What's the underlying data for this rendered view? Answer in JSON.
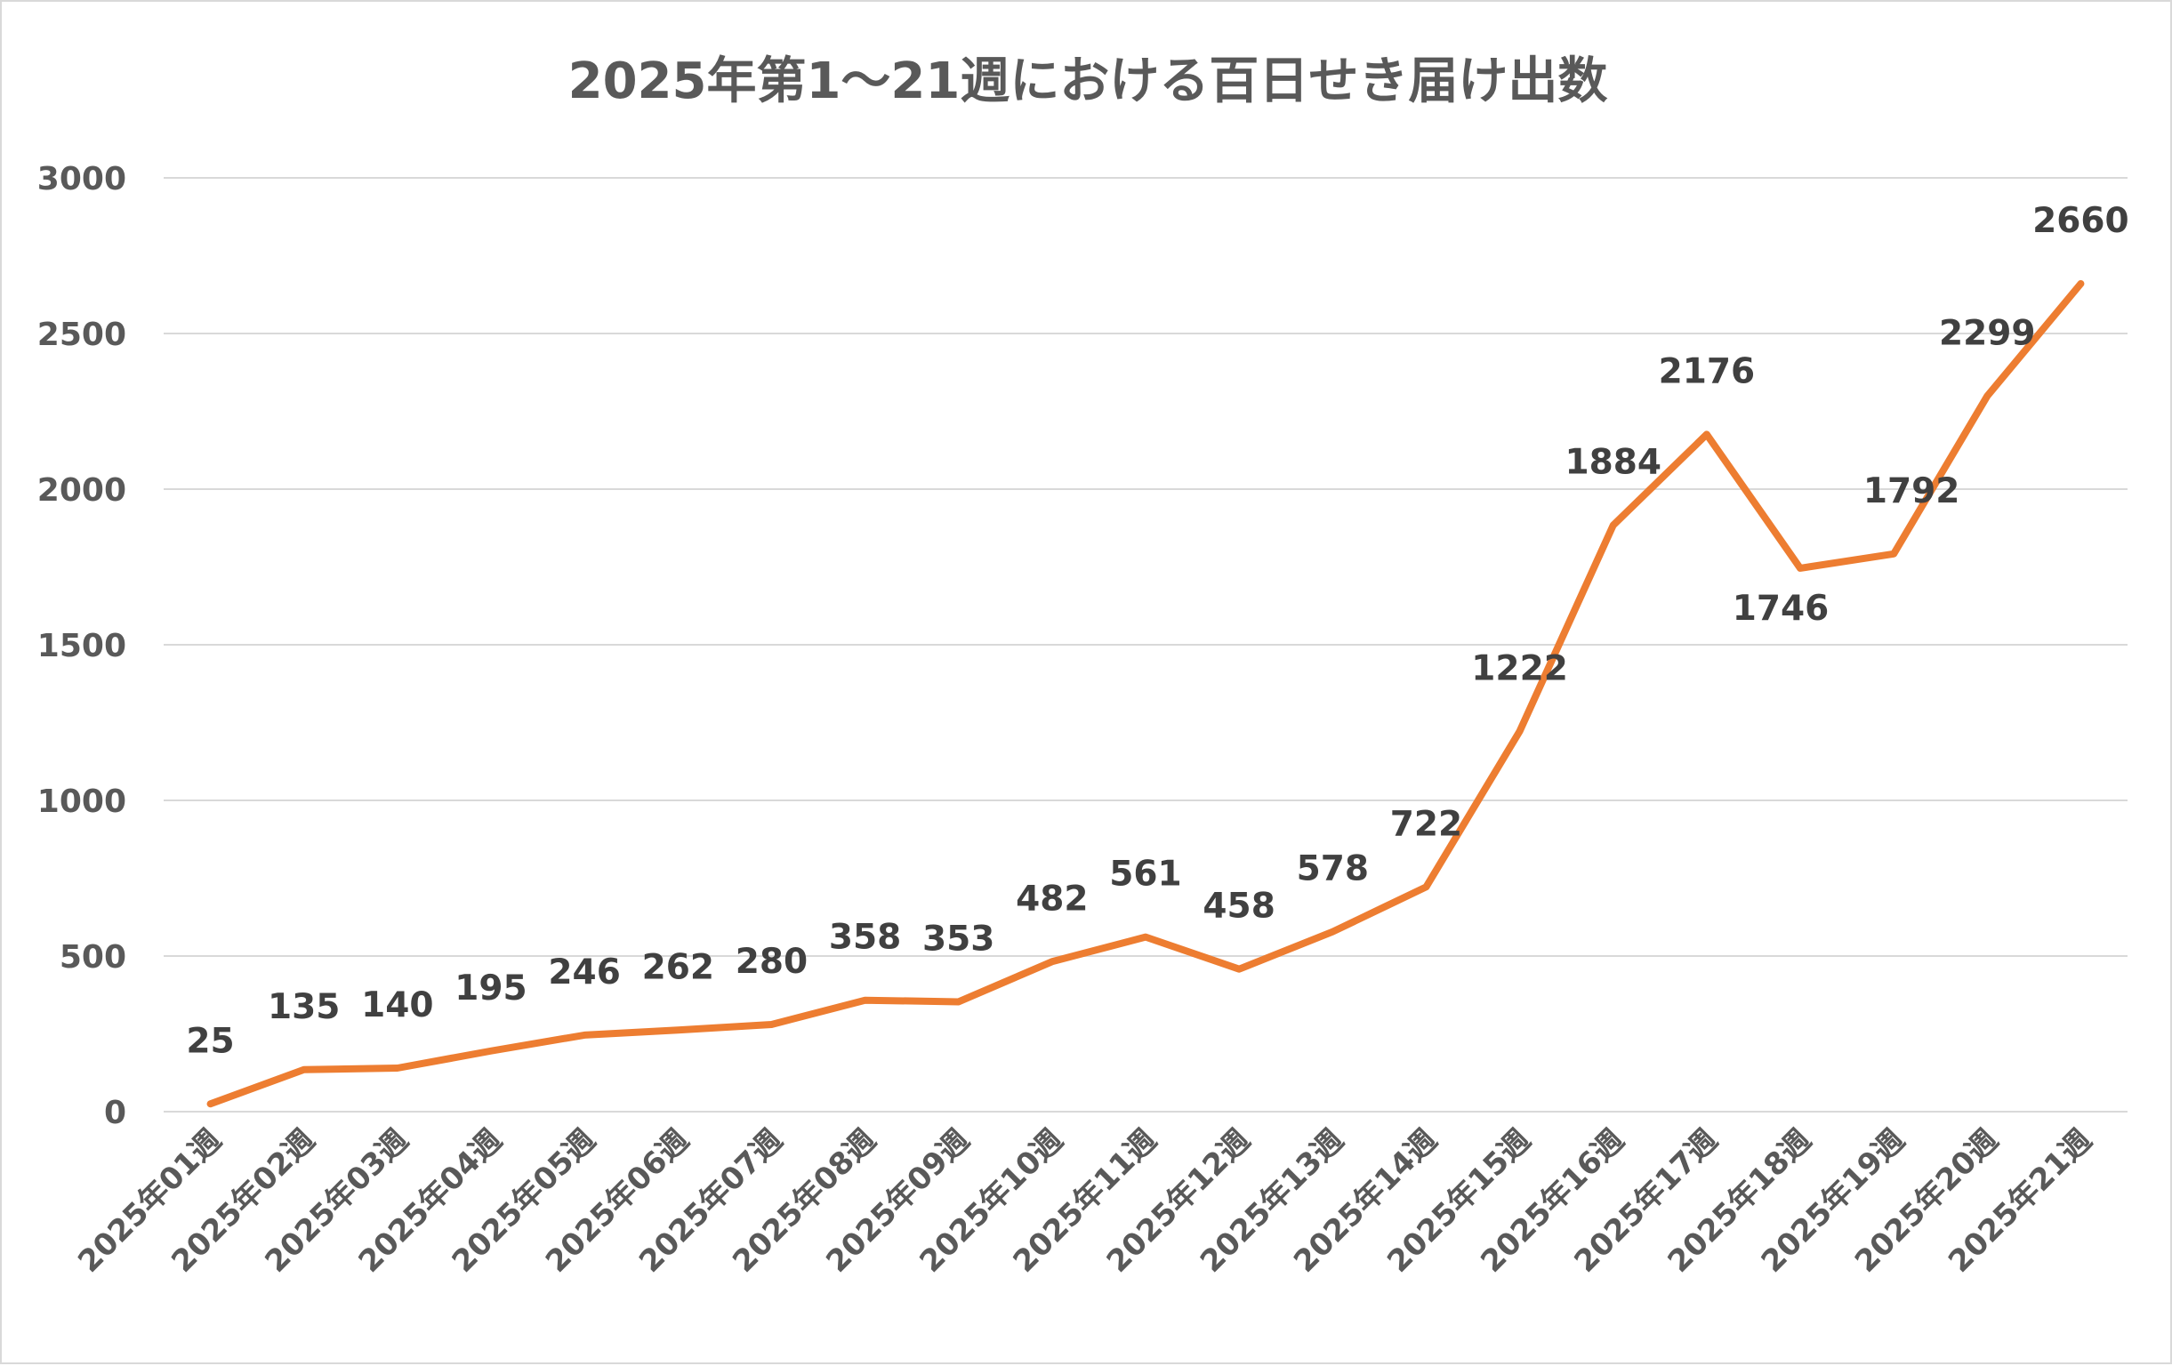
{
  "chart_data": {
    "type": "line",
    "title": "2025年第1～21週における百日せき届け出数",
    "xlabel": "",
    "ylabel": "",
    "ylim": [
      0,
      3000
    ],
    "yticks": [
      "0",
      "500",
      "1000",
      "1500",
      "2000",
      "2500",
      "3000"
    ],
    "grid": true,
    "legend": "none",
    "colors": {
      "line": "#ED7D31",
      "grid": "#d9d9d9",
      "text": "#595959",
      "label": "#404040"
    },
    "categories": [
      "2025年01週",
      "2025年02週",
      "2025年03週",
      "2025年04週",
      "2025年05週",
      "2025年06週",
      "2025年07週",
      "2025年08週",
      "2025年09週",
      "2025年10週",
      "2025年11週",
      "2025年12週",
      "2025年13週",
      "2025年14週",
      "2025年15週",
      "2025年16週",
      "2025年17週",
      "2025年18週",
      "2025年19週",
      "2025年20週",
      "2025年21週"
    ],
    "series": [
      {
        "values": [
          25,
          135,
          140,
          195,
          246,
          262,
          280,
          358,
          353,
          482,
          561,
          458,
          578,
          722,
          1222,
          1884,
          2176,
          1746,
          1792,
          2299,
          2660
        ],
        "labels": [
          "25",
          "135",
          "140",
          "195",
          "246",
          "262",
          "280",
          "358",
          "353",
          "482",
          "561",
          "458",
          "578",
          "722",
          "1222",
          "1884",
          "2176",
          "1746",
          "1792",
          "2299",
          "2660"
        ]
      }
    ]
  }
}
